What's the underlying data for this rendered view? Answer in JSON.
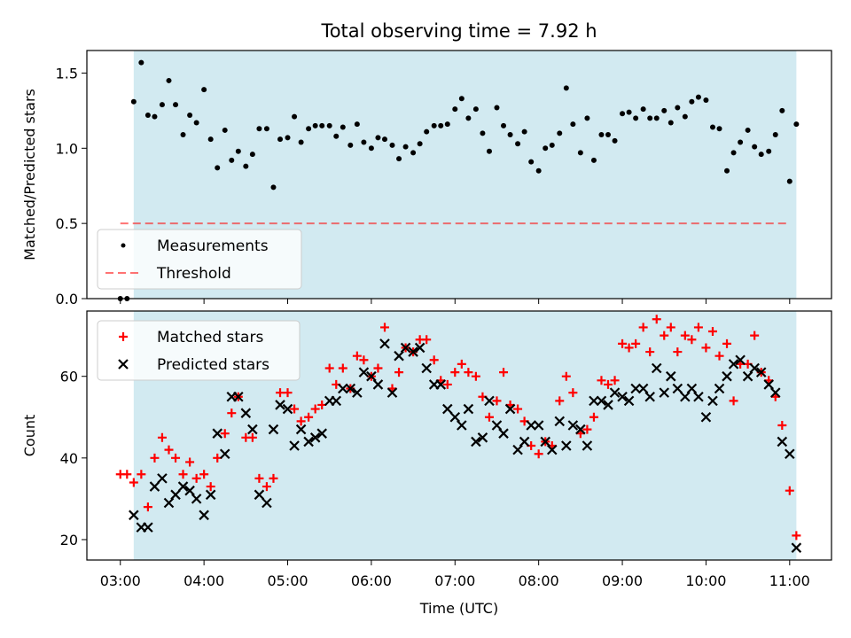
{
  "title": "Total observing time = 7.92 h",
  "colors": {
    "shade": "#add8e6",
    "measurement": "#000000",
    "threshold": "#ff0000",
    "matched": "#ff0000",
    "predicted": "#000000"
  },
  "chart_data": [
    {
      "type": "scatter",
      "panel": "top",
      "ylabel": "Matched/Predicted stars",
      "xlim": [
        2.6,
        11.5
      ],
      "ylim": [
        0,
        1.65
      ],
      "yticks": [
        "0.0",
        "0.5",
        "1.0",
        "1.5"
      ],
      "shade_x": [
        3.16,
        11.08
      ],
      "legend": "lower-left",
      "series": [
        {
          "name": "Measurements",
          "marker": "dot",
          "x": [
            3.0,
            3.08,
            3.16,
            3.25,
            3.33,
            3.41,
            3.5,
            3.58,
            3.66,
            3.75,
            3.83,
            3.91,
            4.0,
            4.08,
            4.16,
            4.25,
            4.33,
            4.41,
            4.5,
            4.58,
            4.66,
            4.75,
            4.83,
            4.91,
            5.0,
            5.08,
            5.16,
            5.25,
            5.33,
            5.41,
            5.5,
            5.58,
            5.66,
            5.75,
            5.83,
            5.91,
            6.0,
            6.08,
            6.16,
            6.25,
            6.33,
            6.41,
            6.5,
            6.58,
            6.66,
            6.75,
            6.83,
            6.91,
            7.0,
            7.08,
            7.16,
            7.25,
            7.33,
            7.41,
            7.5,
            7.58,
            7.66,
            7.75,
            7.83,
            7.91,
            8.0,
            8.08,
            8.16,
            8.25,
            8.33,
            8.41,
            8.5,
            8.58,
            8.66,
            8.75,
            8.83,
            8.91,
            9.0,
            9.08,
            9.16,
            9.25,
            9.33,
            9.41,
            9.5,
            9.58,
            9.66,
            9.75,
            9.83,
            9.91,
            10.0,
            10.08,
            10.16,
            10.25,
            10.33,
            10.41,
            10.5,
            10.58,
            10.66,
            10.75,
            10.83,
            10.91,
            11.0,
            11.08
          ],
          "y": [
            0.0,
            0.0,
            1.31,
            1.57,
            1.22,
            1.21,
            1.29,
            1.45,
            1.29,
            1.09,
            1.22,
            1.17,
            1.39,
            1.06,
            0.87,
            1.12,
            0.92,
            0.98,
            0.88,
            0.96,
            1.13,
            1.13,
            0.74,
            1.06,
            1.07,
            1.21,
            1.04,
            1.13,
            1.15,
            1.15,
            1.15,
            1.08,
            1.14,
            1.02,
            1.16,
            1.04,
            1.0,
            1.07,
            1.06,
            1.02,
            0.93,
            1.01,
            0.97,
            1.03,
            1.11,
            1.15,
            1.15,
            1.16,
            1.26,
            1.33,
            1.2,
            1.26,
            1.1,
            0.98,
            1.27,
            1.15,
            1.09,
            1.03,
            1.11,
            0.91,
            0.85,
            1.0,
            1.02,
            1.1,
            1.4,
            1.16,
            0.97,
            1.2,
            0.92,
            1.09,
            1.09,
            1.05,
            1.23,
            1.24,
            1.2,
            1.26,
            1.2,
            1.2,
            1.25,
            1.17,
            1.27,
            1.21,
            1.31,
            1.34,
            1.32,
            1.14,
            1.13,
            0.85,
            0.97,
            1.04,
            1.12,
            1.01,
            0.96,
            0.98,
            1.09,
            1.25,
            0.78,
            1.16
          ]
        },
        {
          "name": "Threshold",
          "style": "dashed",
          "x": [
            3.0,
            11.0
          ],
          "y": [
            0.5,
            0.5
          ]
        }
      ]
    },
    {
      "type": "scatter",
      "panel": "bottom",
      "xlabel": "Time (UTC)",
      "ylabel": "Count",
      "xlim": [
        2.6,
        11.5
      ],
      "ylim": [
        15,
        76
      ],
      "xticks": [
        {
          "v": 3,
          "label": "03:00"
        },
        {
          "v": 4,
          "label": "04:00"
        },
        {
          "v": 5,
          "label": "05:00"
        },
        {
          "v": 6,
          "label": "06:00"
        },
        {
          "v": 7,
          "label": "07:00"
        },
        {
          "v": 8,
          "label": "08:00"
        },
        {
          "v": 9,
          "label": "09:00"
        },
        {
          "v": 10,
          "label": "10:00"
        },
        {
          "v": 11,
          "label": "11:00"
        }
      ],
      "yticks": [
        "20",
        "40",
        "60"
      ],
      "shade_x": [
        3.16,
        11.08
      ],
      "legend": "upper-left",
      "series": [
        {
          "name": "Matched stars",
          "marker": "plus",
          "x": [
            3.0,
            3.08,
            3.16,
            3.25,
            3.33,
            3.41,
            3.5,
            3.58,
            3.66,
            3.75,
            3.83,
            3.91,
            4.0,
            4.08,
            4.16,
            4.25,
            4.33,
            4.41,
            4.5,
            4.58,
            4.66,
            4.75,
            4.83,
            4.91,
            5.0,
            5.08,
            5.16,
            5.25,
            5.33,
            5.41,
            5.5,
            5.58,
            5.66,
            5.75,
            5.83,
            5.91,
            6.0,
            6.08,
            6.16,
            6.25,
            6.33,
            6.41,
            6.5,
            6.58,
            6.66,
            6.75,
            6.83,
            6.91,
            7.0,
            7.08,
            7.16,
            7.25,
            7.33,
            7.41,
            7.5,
            7.58,
            7.66,
            7.75,
            7.83,
            7.91,
            8.0,
            8.08,
            8.16,
            8.25,
            8.33,
            8.41,
            8.5,
            8.58,
            8.66,
            8.75,
            8.83,
            8.91,
            9.0,
            9.08,
            9.16,
            9.25,
            9.33,
            9.41,
            9.5,
            9.58,
            9.66,
            9.75,
            9.83,
            9.91,
            10.0,
            10.08,
            10.16,
            10.25,
            10.33,
            10.41,
            10.5,
            10.58,
            10.66,
            10.75,
            10.83,
            10.91,
            11.0,
            11.08
          ],
          "y": [
            36,
            36,
            34,
            36,
            28,
            40,
            45,
            42,
            40,
            36,
            39,
            35,
            36,
            33,
            40,
            46,
            51,
            55,
            45,
            45,
            35,
            33,
            35,
            56,
            56,
            52,
            49,
            50,
            52,
            53,
            62,
            58,
            62,
            57,
            65,
            64,
            60,
            62,
            72,
            57,
            61,
            67,
            66,
            69,
            69,
            64,
            59,
            58,
            61,
            63,
            61,
            60,
            55,
            50,
            54,
            61,
            53,
            52,
            49,
            43,
            41,
            44,
            43,
            54,
            60,
            56,
            46,
            47,
            50,
            59,
            58,
            59,
            68,
            67,
            68,
            72,
            66,
            74,
            70,
            72,
            66,
            70,
            69,
            72,
            67,
            71,
            65,
            68,
            54,
            63,
            63,
            70,
            61,
            59,
            55,
            48,
            32,
            21
          ]
        },
        {
          "name": "Predicted stars",
          "marker": "x",
          "x": [
            3.16,
            3.25,
            3.33,
            3.41,
            3.5,
            3.58,
            3.66,
            3.75,
            3.83,
            3.91,
            4.0,
            4.08,
            4.16,
            4.25,
            4.33,
            4.41,
            4.5,
            4.58,
            4.66,
            4.75,
            4.83,
            4.91,
            5.0,
            5.08,
            5.16,
            5.25,
            5.33,
            5.41,
            5.5,
            5.58,
            5.66,
            5.75,
            5.83,
            5.91,
            6.0,
            6.08,
            6.16,
            6.25,
            6.33,
            6.41,
            6.5,
            6.58,
            6.66,
            6.75,
            6.83,
            6.91,
            7.0,
            7.08,
            7.16,
            7.25,
            7.33,
            7.41,
            7.5,
            7.58,
            7.66,
            7.75,
            7.83,
            7.91,
            8.0,
            8.08,
            8.16,
            8.25,
            8.33,
            8.41,
            8.5,
            8.58,
            8.66,
            8.75,
            8.83,
            8.91,
            9.0,
            9.08,
            9.16,
            9.25,
            9.33,
            9.41,
            9.5,
            9.58,
            9.66,
            9.75,
            9.83,
            9.91,
            10.0,
            10.08,
            10.16,
            10.25,
            10.33,
            10.41,
            10.5,
            10.58,
            10.66,
            10.75,
            10.83,
            10.91,
            11.0,
            11.08
          ],
          "y": [
            26,
            23,
            23,
            33,
            35,
            29,
            31,
            33,
            32,
            30,
            26,
            31,
            46,
            41,
            55,
            55,
            51,
            47,
            31,
            29,
            47,
            53,
            52,
            43,
            47,
            44,
            45,
            46,
            54,
            54,
            57,
            57,
            56,
            61,
            60,
            58,
            68,
            56,
            65,
            67,
            66,
            67,
            62,
            58,
            58,
            52,
            50,
            48,
            52,
            44,
            45,
            54,
            48,
            46,
            52,
            42,
            44,
            48,
            48,
            44,
            42,
            49,
            43,
            48,
            47,
            43,
            54,
            54,
            53,
            56,
            55,
            54,
            57,
            57,
            55,
            62,
            56,
            60,
            57,
            55,
            57,
            55,
            50,
            54,
            57,
            60,
            63,
            64,
            60,
            62,
            61,
            58,
            56,
            44,
            41,
            18
          ]
        }
      ]
    }
  ]
}
